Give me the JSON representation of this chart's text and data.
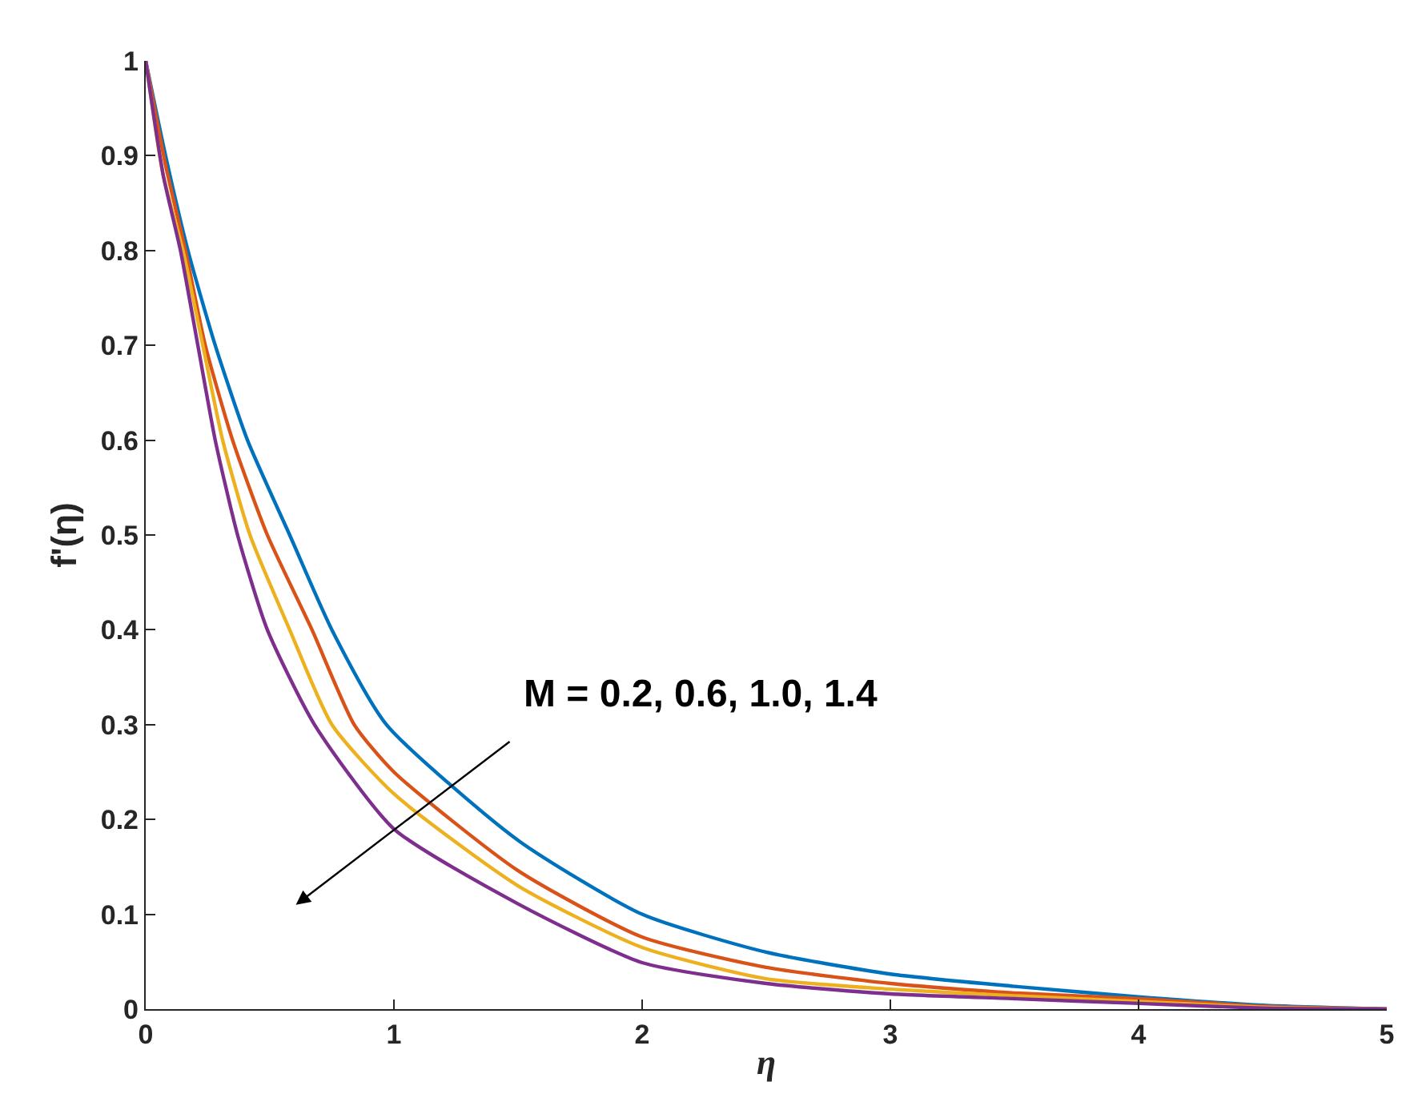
{
  "chart_data": {
    "type": "line",
    "xlabel": "η",
    "ylabel": "f'(η)",
    "xlim": [
      0,
      5
    ],
    "xticks": [
      0,
      1,
      2,
      3,
      4,
      5
    ],
    "ylim": [
      0,
      1
    ],
    "yticks": [
      0,
      0.1,
      0.2,
      0.3,
      0.4,
      0.5,
      0.6,
      0.7,
      0.8,
      0.9,
      1
    ],
    "marker": "none",
    "line_style": "solid",
    "series": [
      {
        "color": "#0072bd",
        "x": [
          0,
          0.08,
          0.17,
          0.28,
          0.41,
          0.58,
          0.75,
          0.97,
          1.5,
          2,
          2.5,
          3,
          3.5,
          4,
          4.5,
          5
        ],
        "values": [
          1,
          0.9,
          0.8,
          0.7,
          0.6,
          0.5,
          0.4,
          0.3,
          0.178,
          0.1,
          0.06,
          0.037,
          0.024,
          0.013,
          0.004,
          0
        ]
      },
      {
        "color": "#d95319",
        "x": [
          0,
          0.08,
          0.16,
          0.24,
          0.35,
          0.49,
          0.67,
          0.84,
          1,
          1.5,
          2,
          2.5,
          3,
          3.5,
          4,
          4.5,
          5
        ],
        "values": [
          1,
          0.89,
          0.8,
          0.7,
          0.6,
          0.5,
          0.4,
          0.3,
          0.25,
          0.146,
          0.076,
          0.044,
          0.027,
          0.017,
          0.011,
          0.003,
          0
        ]
      },
      {
        "color": "#edb120",
        "x": [
          0,
          0.07,
          0.15,
          0.23,
          0.31,
          0.42,
          0.58,
          0.75,
          1,
          1.5,
          2,
          2.5,
          3,
          3.5,
          4,
          4.5,
          5
        ],
        "values": [
          1,
          0.88,
          0.8,
          0.7,
          0.6,
          0.5,
          0.4,
          0.3,
          0.227,
          0.13,
          0.065,
          0.032,
          0.021,
          0.014,
          0.008,
          0.002,
          0
        ]
      },
      {
        "color": "#7e2f8e",
        "x": [
          0,
          0.07,
          0.14,
          0.21,
          0.28,
          0.37,
          0.49,
          0.68,
          1,
          1.5,
          2,
          2.5,
          3,
          3.5,
          4,
          4.5,
          5
        ],
        "values": [
          1,
          0.88,
          0.8,
          0.7,
          0.6,
          0.5,
          0.4,
          0.3,
          0.19,
          0.111,
          0.049,
          0.027,
          0.016,
          0.011,
          0.006,
          0.001,
          0
        ]
      }
    ],
    "annotations": [
      "M = 0.2, 0.6, 1.0, 1.4"
    ]
  }
}
